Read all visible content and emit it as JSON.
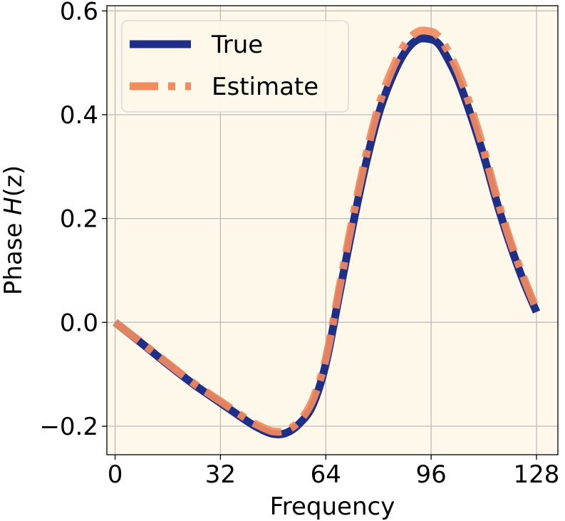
{
  "chart_data": {
    "type": "line",
    "title": "",
    "xlabel": "Frequency",
    "ylabel_prefix": "Phase  ",
    "ylabel_symbol": "H",
    "ylabel_suffix": "(z)",
    "xlim": [
      -2.5,
      134.5
    ],
    "ylim": [
      -0.255,
      0.61
    ],
    "x_ticks": [
      0,
      32,
      64,
      96,
      128
    ],
    "x_tick_labels": [
      "0",
      "32",
      "64",
      "96",
      "128"
    ],
    "y_ticks": [
      -0.2,
      0.0,
      0.2,
      0.4,
      0.6
    ],
    "y_tick_labels": [
      "−0.2",
      "0.0",
      "0.2",
      "0.4",
      "0.6"
    ],
    "grid": true,
    "legend_position": "top-left",
    "background_color": "#fdf8ea",
    "x": [
      0,
      8,
      16,
      24,
      32,
      40,
      44,
      48,
      52,
      56,
      60,
      64,
      68,
      72,
      76,
      80,
      84,
      88,
      92,
      96,
      98,
      100,
      104,
      108,
      112,
      116,
      120,
      124,
      128
    ],
    "series": [
      {
        "name": "True",
        "color": "#1f2f88",
        "style": "solid",
        "values": [
          0.0,
          -0.04,
          -0.081,
          -0.12,
          -0.155,
          -0.19,
          -0.205,
          -0.215,
          -0.213,
          -0.195,
          -0.16,
          -0.08,
          0.05,
          0.18,
          0.3,
          0.4,
          0.47,
          0.52,
          0.545,
          0.545,
          0.538,
          0.52,
          0.47,
          0.4,
          0.32,
          0.23,
          0.15,
          0.08,
          0.02
        ]
      },
      {
        "name": "Estimate",
        "color": "#f28b5e",
        "style": "dashdot",
        "values": [
          0.0,
          -0.039,
          -0.079,
          -0.118,
          -0.152,
          -0.186,
          -0.2,
          -0.21,
          -0.208,
          -0.19,
          -0.15,
          -0.07,
          0.062,
          0.195,
          0.315,
          0.415,
          0.485,
          0.535,
          0.56,
          0.56,
          0.552,
          0.535,
          0.485,
          0.415,
          0.332,
          0.24,
          0.158,
          0.088,
          0.025
        ]
      }
    ]
  }
}
